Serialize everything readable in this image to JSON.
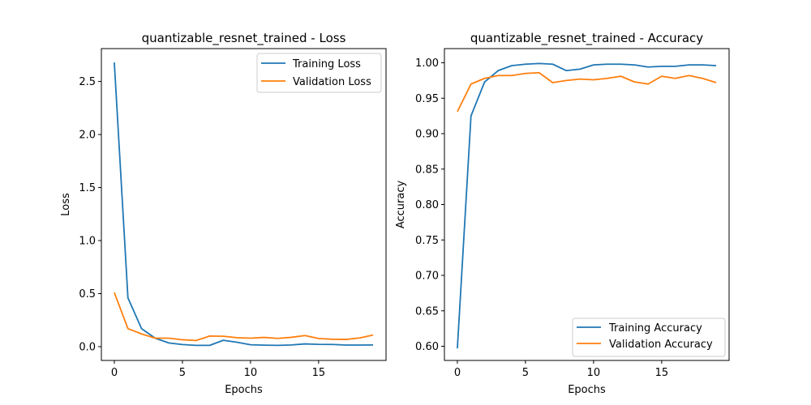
{
  "chart_data": [
    {
      "type": "line",
      "title": "quantizable_resnet_trained - Loss",
      "xlabel": "Epochs",
      "ylabel": "Loss",
      "xlim": [
        -0.95,
        19.95
      ],
      "ylim": [
        -0.13,
        2.81
      ],
      "xticks": [
        0,
        5,
        10,
        15
      ],
      "yticks": [
        0.0,
        0.5,
        1.0,
        1.5,
        2.0,
        2.5
      ],
      "ytick_labels": [
        "0.0",
        "0.5",
        "1.0",
        "1.5",
        "2.0",
        "2.5"
      ],
      "legend_position": "top-right",
      "x": [
        0,
        1,
        2,
        3,
        4,
        5,
        6,
        7,
        8,
        9,
        10,
        11,
        12,
        13,
        14,
        15,
        16,
        17,
        18,
        19
      ],
      "series": [
        {
          "name": "Training Loss",
          "color": "#1f77b4",
          "values": [
            2.68,
            0.46,
            0.17,
            0.08,
            0.035,
            0.02,
            0.012,
            0.012,
            0.06,
            0.042,
            0.018,
            0.014,
            0.012,
            0.016,
            0.026,
            0.022,
            0.021,
            0.015,
            0.015,
            0.016
          ]
        },
        {
          "name": "Validation Loss",
          "color": "#ff7f0e",
          "values": [
            0.51,
            0.17,
            0.12,
            0.08,
            0.08,
            0.065,
            0.058,
            0.1,
            0.098,
            0.085,
            0.08,
            0.087,
            0.078,
            0.088,
            0.105,
            0.077,
            0.07,
            0.068,
            0.082,
            0.11
          ]
        }
      ]
    },
    {
      "type": "line",
      "title": "quantizable_resnet_trained - Accuracy",
      "xlabel": "Epochs",
      "ylabel": "Accuracy",
      "xlim": [
        -0.95,
        19.95
      ],
      "ylim": [
        0.58,
        1.02
      ],
      "xticks": [
        0,
        5,
        10,
        15
      ],
      "yticks": [
        0.6,
        0.65,
        0.7,
        0.75,
        0.8,
        0.85,
        0.9,
        0.95,
        1.0
      ],
      "ytick_labels": [
        "0.60",
        "0.65",
        "0.70",
        "0.75",
        "0.80",
        "0.85",
        "0.90",
        "0.95",
        "1.00"
      ],
      "legend_position": "bottom-right",
      "x": [
        0,
        1,
        2,
        3,
        4,
        5,
        6,
        7,
        8,
        9,
        10,
        11,
        12,
        13,
        14,
        15,
        16,
        17,
        18,
        19
      ],
      "series": [
        {
          "name": "Training Accuracy",
          "color": "#1f77b4",
          "values": [
            0.597,
            0.925,
            0.973,
            0.989,
            0.996,
            0.998,
            0.999,
            0.998,
            0.989,
            0.991,
            0.997,
            0.998,
            0.998,
            0.997,
            0.994,
            0.995,
            0.995,
            0.997,
            0.997,
            0.996
          ]
        },
        {
          "name": "Validation Accuracy",
          "color": "#ff7f0e",
          "values": [
            0.931,
            0.97,
            0.978,
            0.982,
            0.982,
            0.985,
            0.986,
            0.972,
            0.975,
            0.977,
            0.976,
            0.978,
            0.981,
            0.973,
            0.97,
            0.981,
            0.978,
            0.982,
            0.978,
            0.972
          ]
        }
      ]
    }
  ]
}
